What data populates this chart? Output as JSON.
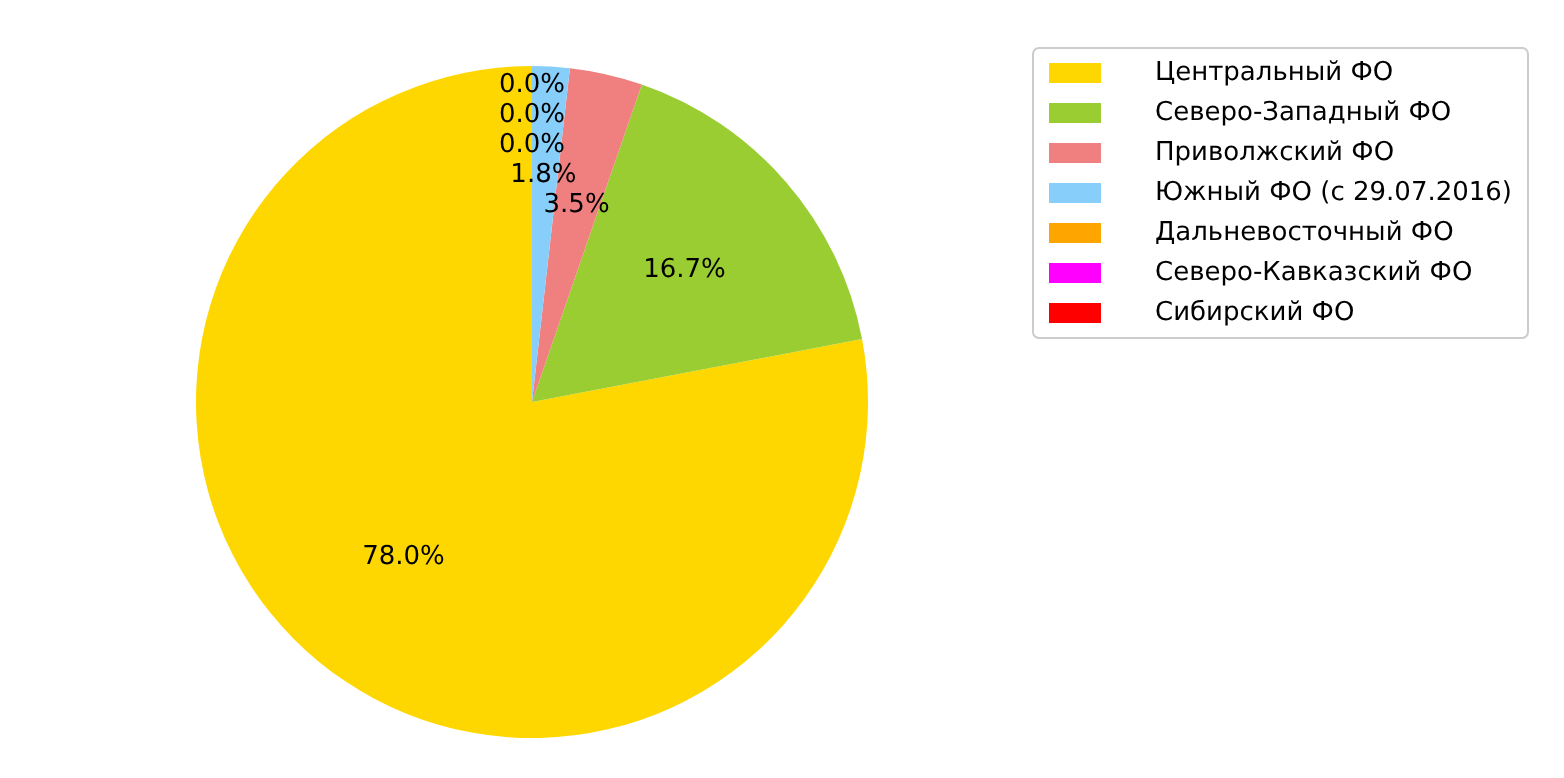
{
  "chart_data": {
    "type": "pie",
    "categories": [
      "Центральный ФО",
      "Северо-Западный ФО",
      "Приволжский ФО",
      "Южный ФО (с 29.07.2016)",
      "Дальневосточный ФО",
      "Северо-Кавказский ФО",
      "Сибирский ФО"
    ],
    "values": [
      78.0,
      16.7,
      3.5,
      1.8,
      0.0,
      0.0,
      0.0
    ],
    "value_labels": [
      "78.0%",
      "16.7%",
      "3.5%",
      "1.8%",
      "0.0%",
      "0.0%",
      "0.0%"
    ],
    "colors": [
      "#ffd700",
      "#9acd32",
      "#f08080",
      "#87cefa",
      "#ffa500",
      "#ff00ff",
      "#ff0000"
    ],
    "legend": "top right"
  }
}
